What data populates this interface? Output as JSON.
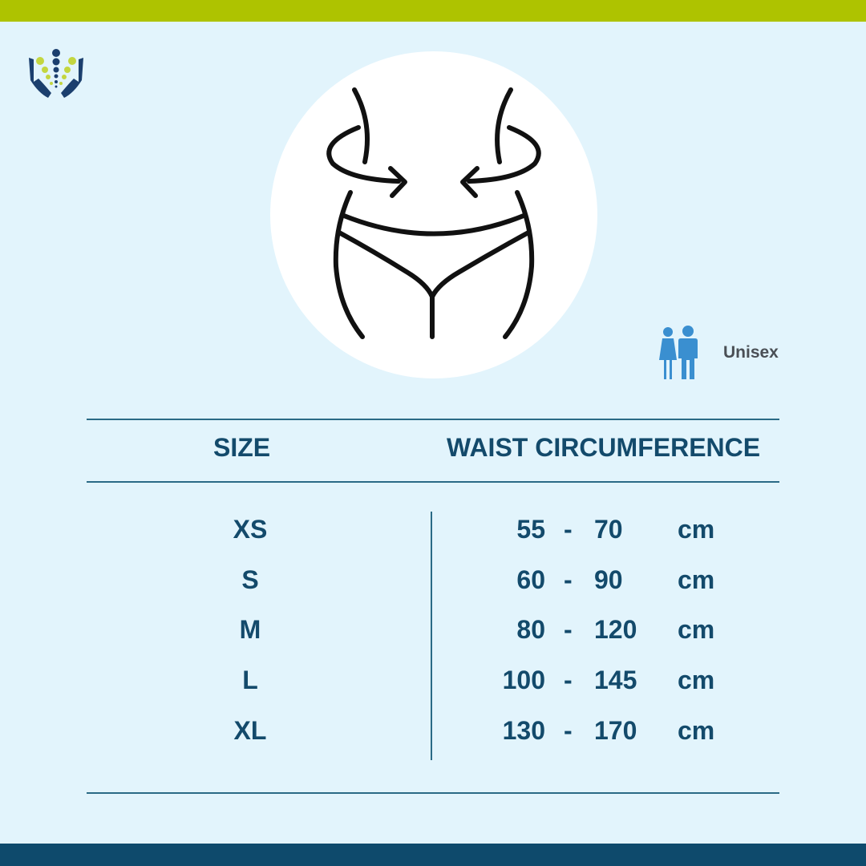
{
  "colors": {
    "top_bar": "#aec300",
    "background": "#e2f4fc",
    "bottom_bar": "#0e4a6c",
    "text": "#134a6b",
    "icon_blue": "#3a8fd0"
  },
  "badge": {
    "icon": "male-female-icon",
    "label": "Unisex"
  },
  "illustration": {
    "icon": "waist-measurement-icon"
  },
  "logo": {
    "icon": "hands-spine-logo"
  },
  "table": {
    "headers": [
      "SIZE",
      "WAIST CIRCUMFERENCE"
    ],
    "rows": [
      {
        "size": "XS",
        "min": "55",
        "sep": "-",
        "max": "70",
        "unit": "cm"
      },
      {
        "size": "S",
        "min": "60",
        "sep": "-",
        "max": "90",
        "unit": "cm"
      },
      {
        "size": "M",
        "min": "80",
        "sep": "-",
        "max": "120",
        "unit": "cm"
      },
      {
        "size": "L",
        "min": "100",
        "sep": "-",
        "max": "145",
        "unit": "cm"
      },
      {
        "size": "XL",
        "min": "130",
        "sep": "-",
        "max": "170",
        "unit": "cm"
      }
    ]
  }
}
